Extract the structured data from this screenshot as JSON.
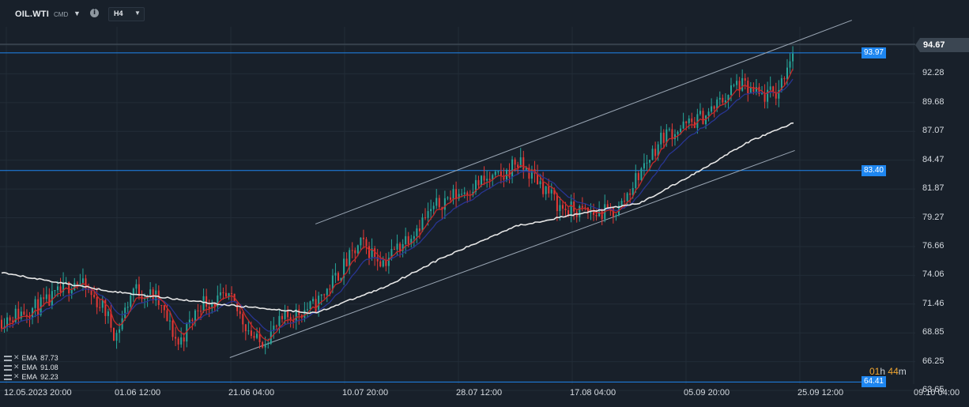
{
  "header": {
    "symbol": "OIL.WTI",
    "symbol_suffix": "CMD",
    "info_icon": "info-icon",
    "timeframe": "H4"
  },
  "colors": {
    "background": "#18202a",
    "bull_candle": "#26a69a",
    "bear_candle": "#e53935",
    "ema_short": "#c62828",
    "ema_mid": "#283593",
    "ema_long": "#e6e6e6",
    "horizontal_line": "#1e86f0",
    "channel_line": "#9aa6b4"
  },
  "legend": {
    "ema": [
      {
        "label": "EMA",
        "value": "87.73"
      },
      {
        "label": "EMA",
        "value": "91.08"
      },
      {
        "label": "EMA",
        "value": "92.23"
      }
    ]
  },
  "countdown": {
    "hours": "01",
    "hours_unit": "h",
    "minutes": "44",
    "minutes_unit": "m"
  },
  "chart_data": {
    "type": "candlestick",
    "title": "",
    "xlabel": "",
    "ylabel": "",
    "ylim": [
      63.65,
      97.6
    ],
    "y_ticks": [
      "94.67",
      "92.28",
      "89.68",
      "87.07",
      "84.47",
      "81.87",
      "79.27",
      "76.66",
      "74.06",
      "71.46",
      "68.85",
      "66.25",
      "63.65"
    ],
    "x_ticks": [
      "12.05.2023  20:00",
      "01.06  12:00",
      "21.06  04:00",
      "10.07  20:00",
      "28.07  12:00",
      "17.08  04:00",
      "05.09  20:00",
      "25.09  12:00",
      "09.10  04:00"
    ],
    "current_price": "94.67",
    "horizontal_levels": [
      {
        "value": 93.97,
        "label": "93.97"
      },
      {
        "value": 83.4,
        "label": "83.40"
      },
      {
        "value": 64.41,
        "label": "64.41"
      }
    ],
    "channel": {
      "upper": [
        {
          "date": "2023-07-06",
          "price": 78.6
        },
        {
          "date": "2023-10-08",
          "price": 96.9
        }
      ],
      "lower": [
        {
          "date": "2023-06-21",
          "price": 66.6
        },
        {
          "date": "2023-09-28",
          "price": 85.2
        }
      ]
    },
    "price_path": [
      {
        "date": "2023-05-12",
        "close": 70.0
      },
      {
        "date": "2023-05-20",
        "close": 71.5
      },
      {
        "date": "2023-05-25",
        "close": 73.6
      },
      {
        "date": "2023-05-30",
        "close": 71.0
      },
      {
        "date": "2023-06-01",
        "close": 68.5
      },
      {
        "date": "2023-06-04",
        "close": 72.8
      },
      {
        "date": "2023-06-08",
        "close": 72.0
      },
      {
        "date": "2023-06-12",
        "close": 67.8
      },
      {
        "date": "2023-06-16",
        "close": 71.6
      },
      {
        "date": "2023-06-21",
        "close": 71.8
      },
      {
        "date": "2023-06-26",
        "close": 67.8
      },
      {
        "date": "2023-07-01",
        "close": 70.2
      },
      {
        "date": "2023-07-06",
        "close": 71.3
      },
      {
        "date": "2023-07-12",
        "close": 75.5
      },
      {
        "date": "2023-07-14",
        "close": 76.8
      },
      {
        "date": "2023-07-18",
        "close": 75.2
      },
      {
        "date": "2023-07-24",
        "close": 78.5
      },
      {
        "date": "2023-07-28",
        "close": 80.6
      },
      {
        "date": "2023-08-02",
        "close": 81.8
      },
      {
        "date": "2023-08-04",
        "close": 82.4
      },
      {
        "date": "2023-08-08",
        "close": 82.8
      },
      {
        "date": "2023-08-10",
        "close": 84.2
      },
      {
        "date": "2023-08-14",
        "close": 82.6
      },
      {
        "date": "2023-08-18",
        "close": 80.0
      },
      {
        "date": "2023-08-24",
        "close": 79.5
      },
      {
        "date": "2023-08-28",
        "close": 79.8
      },
      {
        "date": "2023-09-01",
        "close": 83.4
      },
      {
        "date": "2023-09-05",
        "close": 86.6
      },
      {
        "date": "2023-09-09",
        "close": 87.4
      },
      {
        "date": "2023-09-13",
        "close": 88.6
      },
      {
        "date": "2023-09-18",
        "close": 91.2
      },
      {
        "date": "2023-09-22",
        "close": 90.0
      },
      {
        "date": "2023-09-25",
        "close": 90.4
      },
      {
        "date": "2023-09-27",
        "close": 93.4
      },
      {
        "date": "2023-09-28",
        "close": 94.67
      }
    ],
    "ema_long_path": [
      {
        "date": "2023-05-12",
        "value": 74.2
      },
      {
        "date": "2023-06-01",
        "value": 72.5
      },
      {
        "date": "2023-06-21",
        "value": 71.3
      },
      {
        "date": "2023-07-06",
        "value": 70.6
      },
      {
        "date": "2023-07-18",
        "value": 72.9
      },
      {
        "date": "2023-07-28",
        "value": 75.5
      },
      {
        "date": "2023-08-10",
        "value": 78.4
      },
      {
        "date": "2023-08-20",
        "value": 79.4
      },
      {
        "date": "2023-09-01",
        "value": 80.5
      },
      {
        "date": "2023-09-10",
        "value": 83.0
      },
      {
        "date": "2023-09-20",
        "value": 86.0
      },
      {
        "date": "2023-09-28",
        "value": 87.73
      }
    ]
  }
}
